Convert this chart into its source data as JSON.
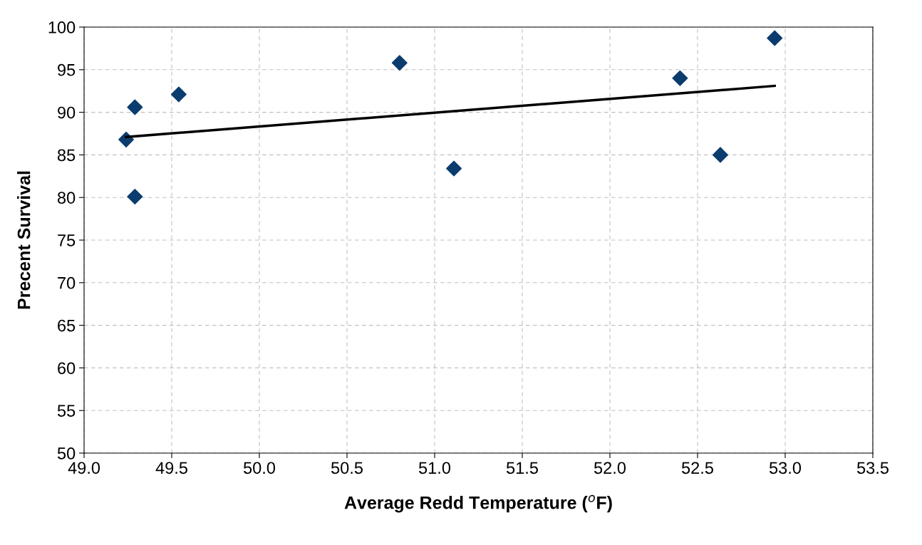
{
  "chart_data": {
    "type": "scatter",
    "xlabel": "Average Redd Temperature ($^{o}$F)",
    "ylabel": "Precent Survival",
    "series": [
      {
        "color": "#0b3c6e",
        "marker": "diamond",
        "x": [
          49.24,
          49.29,
          49.29,
          49.54,
          50.8,
          51.11,
          52.4,
          52.63,
          52.94
        ],
        "values": [
          86.8,
          90.6,
          80.1,
          92.1,
          95.8,
          83.4,
          94.0,
          85.0,
          98.7
        ]
      },
      {
        "type": "line",
        "color": "#000000",
        "marker": "none",
        "x": [
          49.24,
          52.94
        ],
        "values": [
          87.1,
          93.1
        ]
      }
    ],
    "xlim": [
      49.0,
      53.5
    ],
    "xticks": [
      {
        "value": 49.0,
        "label": "49.0"
      },
      {
        "value": 49.5,
        "label": "49.5"
      },
      {
        "value": 50.0,
        "label": "50.0"
      },
      {
        "value": 50.5,
        "label": "50.5"
      },
      {
        "value": 51.0,
        "label": "51.0"
      },
      {
        "value": 51.5,
        "label": "51.5"
      },
      {
        "value": 52.0,
        "label": "52.0"
      },
      {
        "value": 52.5,
        "label": "52.5"
      },
      {
        "value": 53.0,
        "label": "53.0"
      },
      {
        "value": 53.5,
        "label": "53.5"
      }
    ],
    "ylim": [
      50,
      100
    ],
    "yticks": [
      50,
      55,
      60,
      65,
      70,
      75,
      80,
      85,
      90,
      95,
      100
    ],
    "grid": true
  }
}
